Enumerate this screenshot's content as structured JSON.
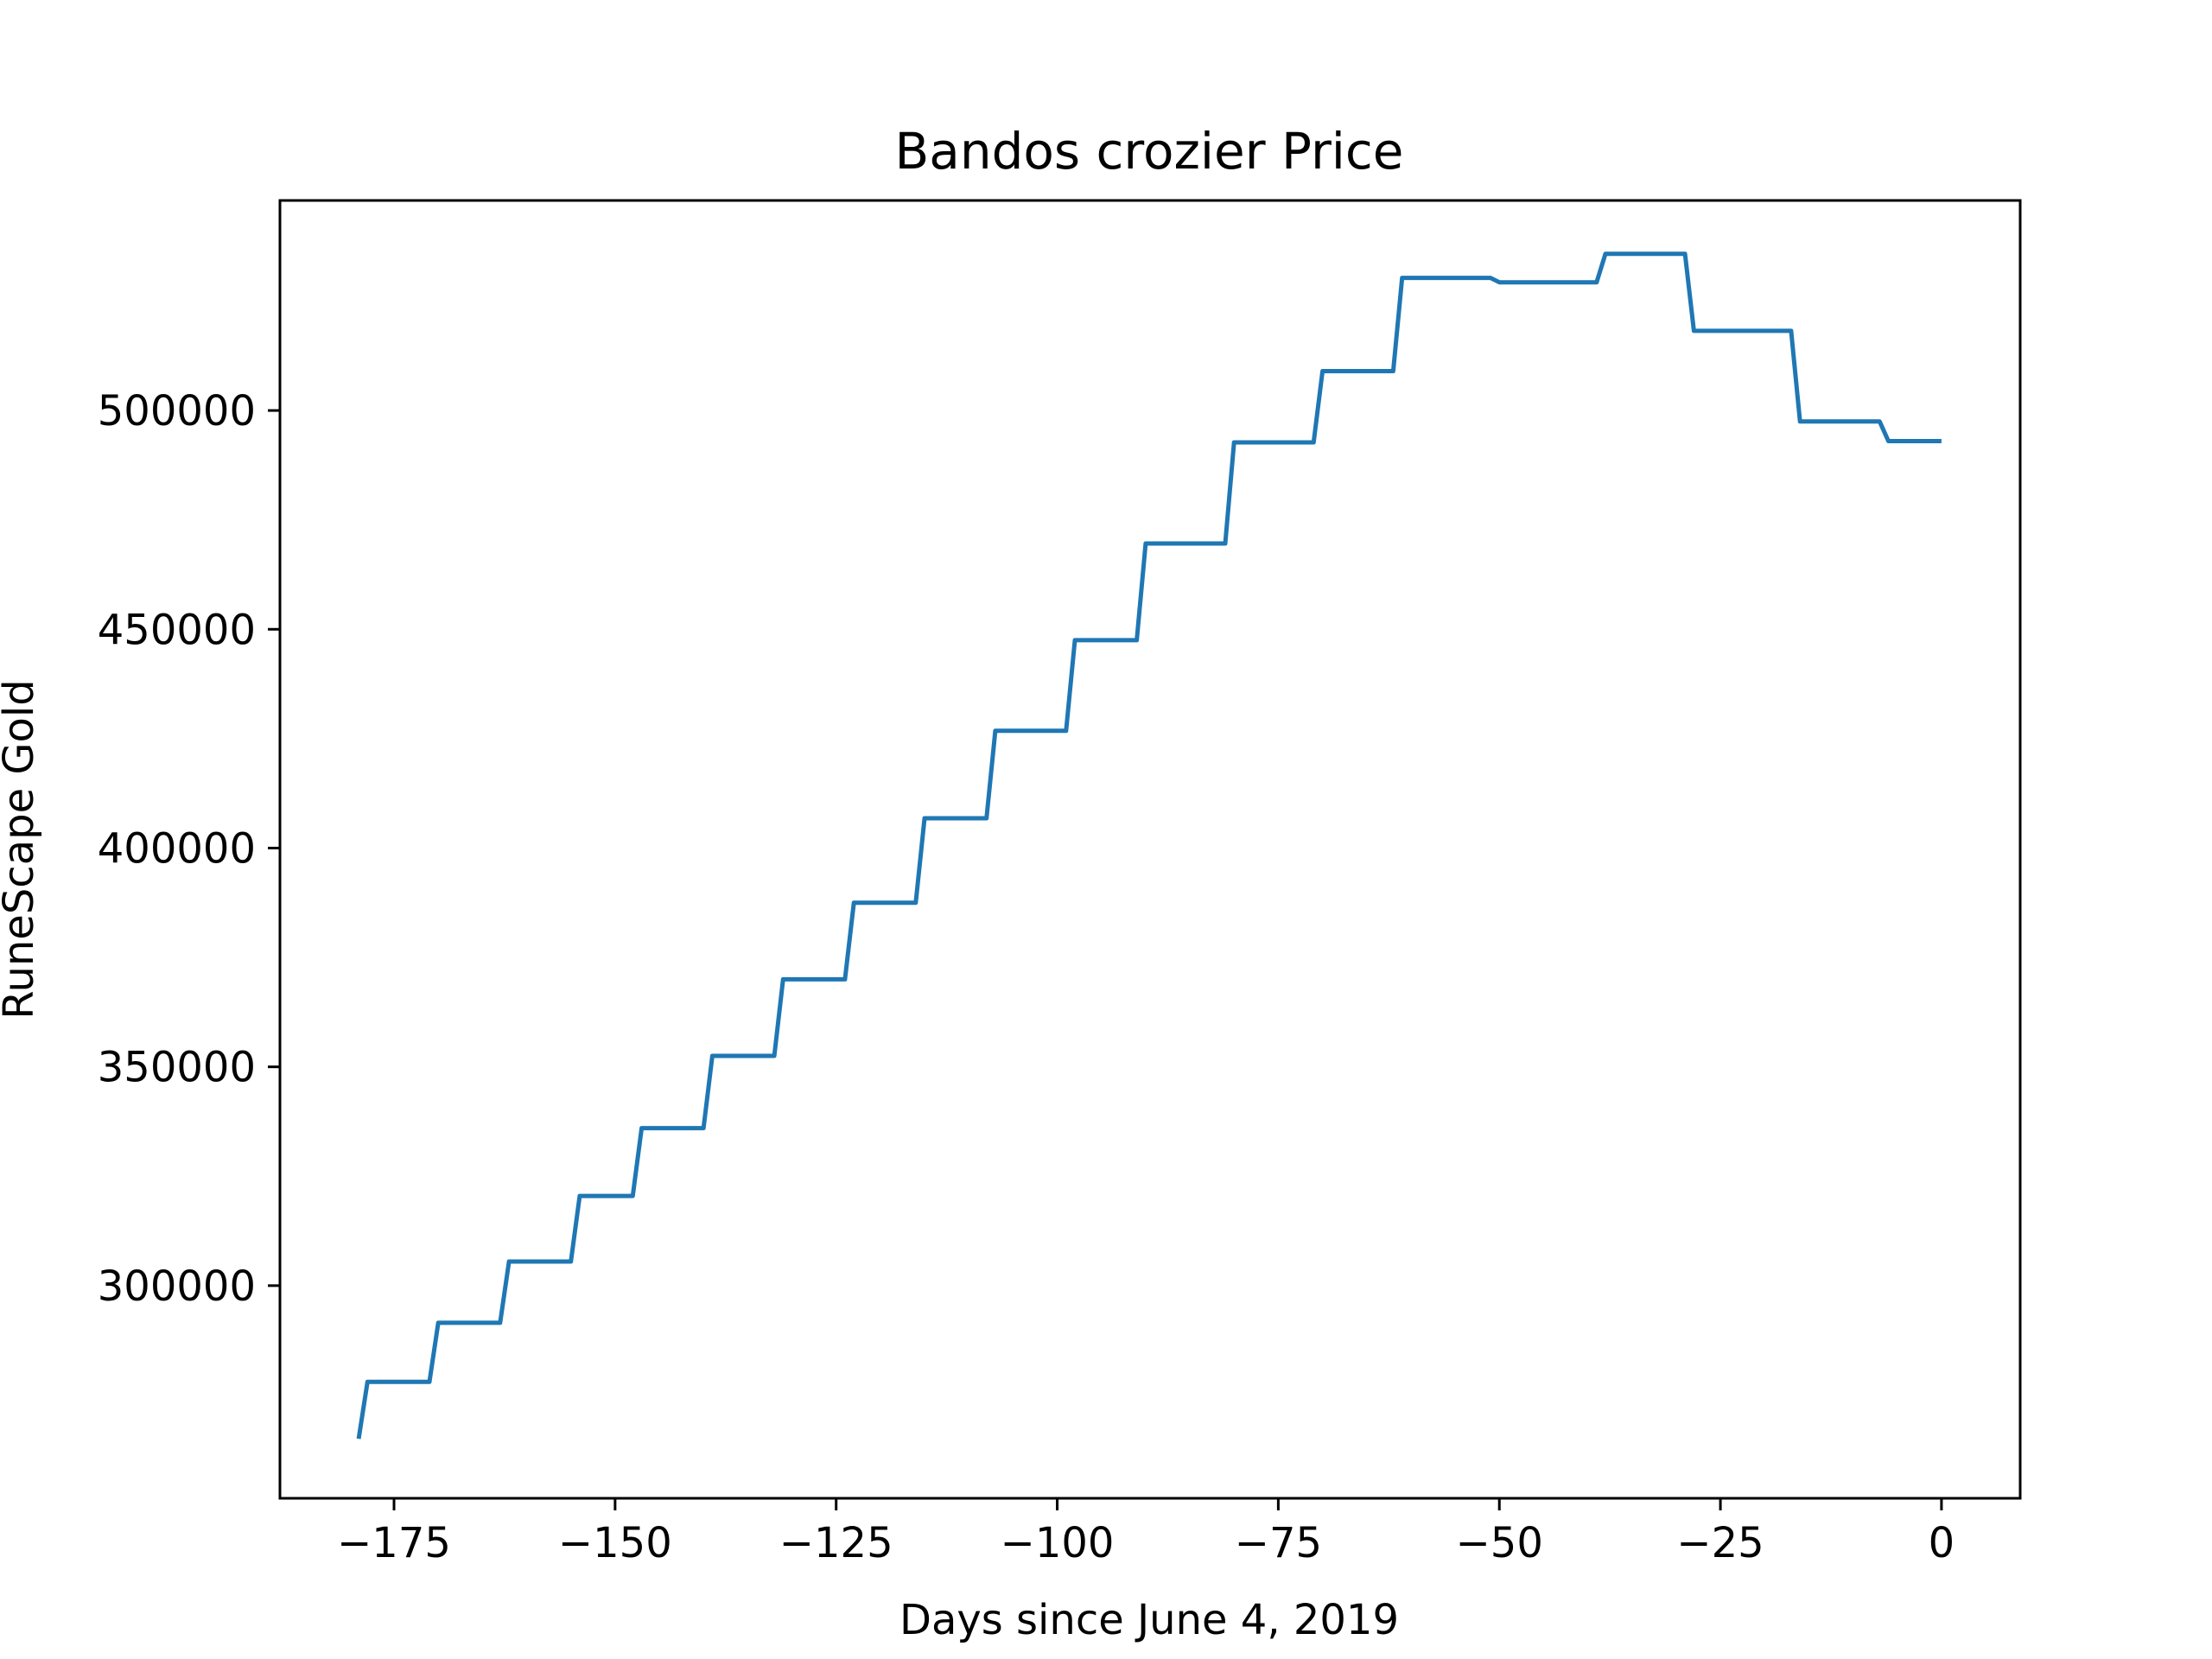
{
  "chart_data": {
    "type": "line",
    "title": "Bandos crozier Price",
    "xlabel": "Days since June 4, 2019",
    "ylabel": "RuneScape Gold",
    "xlim": [
      -187.9,
      8.9
    ],
    "ylim": [
      251400,
      548000
    ],
    "grid": false,
    "legend": "none",
    "xticks": [
      -175,
      -150,
      -125,
      -100,
      -75,
      -50,
      -25,
      0
    ],
    "xtick_labels": [
      "−175",
      "−150",
      "−125",
      "−100",
      "−75",
      "−50",
      "−25",
      "0"
    ],
    "yticks": [
      300000,
      350000,
      400000,
      450000,
      500000
    ],
    "ytick_labels": [
      "300000",
      "350000",
      "400000",
      "450000",
      "500000"
    ],
    "series": [
      {
        "color": "#1f77b4",
        "x": [
          -179,
          -178,
          -171,
          -170,
          -163,
          -162,
          -155,
          -154,
          -148,
          -147,
          -140,
          -139,
          -132,
          -131,
          -124,
          -123,
          -116,
          -115,
          -108,
          -107,
          -99,
          -98,
          -91,
          -90,
          -81,
          -80,
          -71,
          -70,
          -62,
          -61,
          -51,
          -50,
          -39,
          -38,
          -29,
          -28,
          -17,
          -16,
          -7,
          -6,
          0
        ],
        "y": [
          265000,
          278000,
          278000,
          291500,
          291500,
          305500,
          305500,
          320500,
          320500,
          336000,
          336000,
          352500,
          352500,
          370000,
          370000,
          387500,
          387500,
          406800,
          406800,
          426800,
          426800,
          447500,
          447500,
          469600,
          469600,
          492700,
          492700,
          509000,
          509000,
          530300,
          530300,
          529300,
          529300,
          535800,
          535800,
          518200,
          518200,
          497500,
          497500,
          493000,
          493000
        ]
      }
    ]
  }
}
